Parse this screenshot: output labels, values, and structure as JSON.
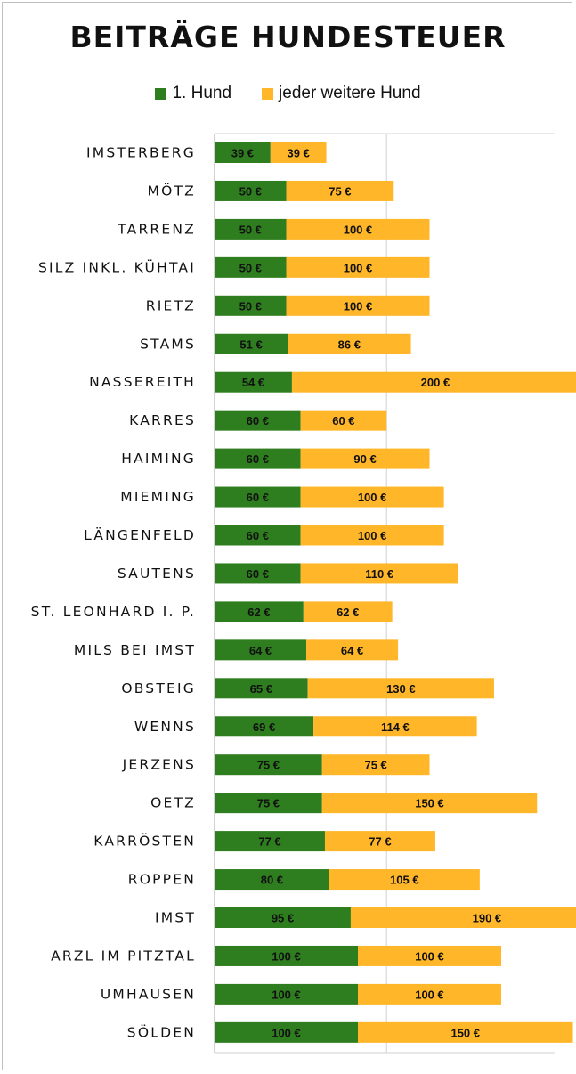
{
  "chart_data": {
    "type": "bar",
    "orientation": "horizontal",
    "stacked": true,
    "title": "BEITRÄGE HUNDESTEUER",
    "legend_position": "top",
    "grid": "vertical gridlines",
    "xlim": [
      0,
      300
    ],
    "categories": [
      "IMSTERBERG",
      "MÖTZ",
      "TARRENZ",
      "SILZ INKL. KÜHTAI",
      "RIETZ",
      "STAMS",
      "NASSEREITH",
      "KARRES",
      "HAIMING",
      "MIEMING",
      "LÄNGENFELD",
      "SAUTENS",
      "ST. LEONHARD I. P.",
      "MILS BEI IMST",
      "OBSTEIG",
      "WENNS",
      "JERZENS",
      "OETZ",
      "KARRÖSTEN",
      "ROPPEN",
      "IMST",
      "ARZL IM PITZTAL",
      "UMHAUSEN",
      "SÖLDEN"
    ],
    "series": [
      {
        "name": "1. Hund",
        "color": "#2e7d1f",
        "values": [
          39,
          50,
          50,
          50,
          50,
          51,
          54,
          60,
          60,
          60,
          60,
          60,
          62,
          64,
          65,
          69,
          75,
          75,
          77,
          80,
          95,
          100,
          100,
          100
        ]
      },
      {
        "name": "jeder weitere Hund",
        "color": "#ffb629",
        "values": [
          39,
          75,
          100,
          100,
          100,
          86,
          200,
          60,
          90,
          100,
          100,
          110,
          62,
          64,
          130,
          114,
          75,
          150,
          77,
          105,
          190,
          100,
          100,
          150
        ]
      }
    ],
    "value_suffix": " €"
  }
}
